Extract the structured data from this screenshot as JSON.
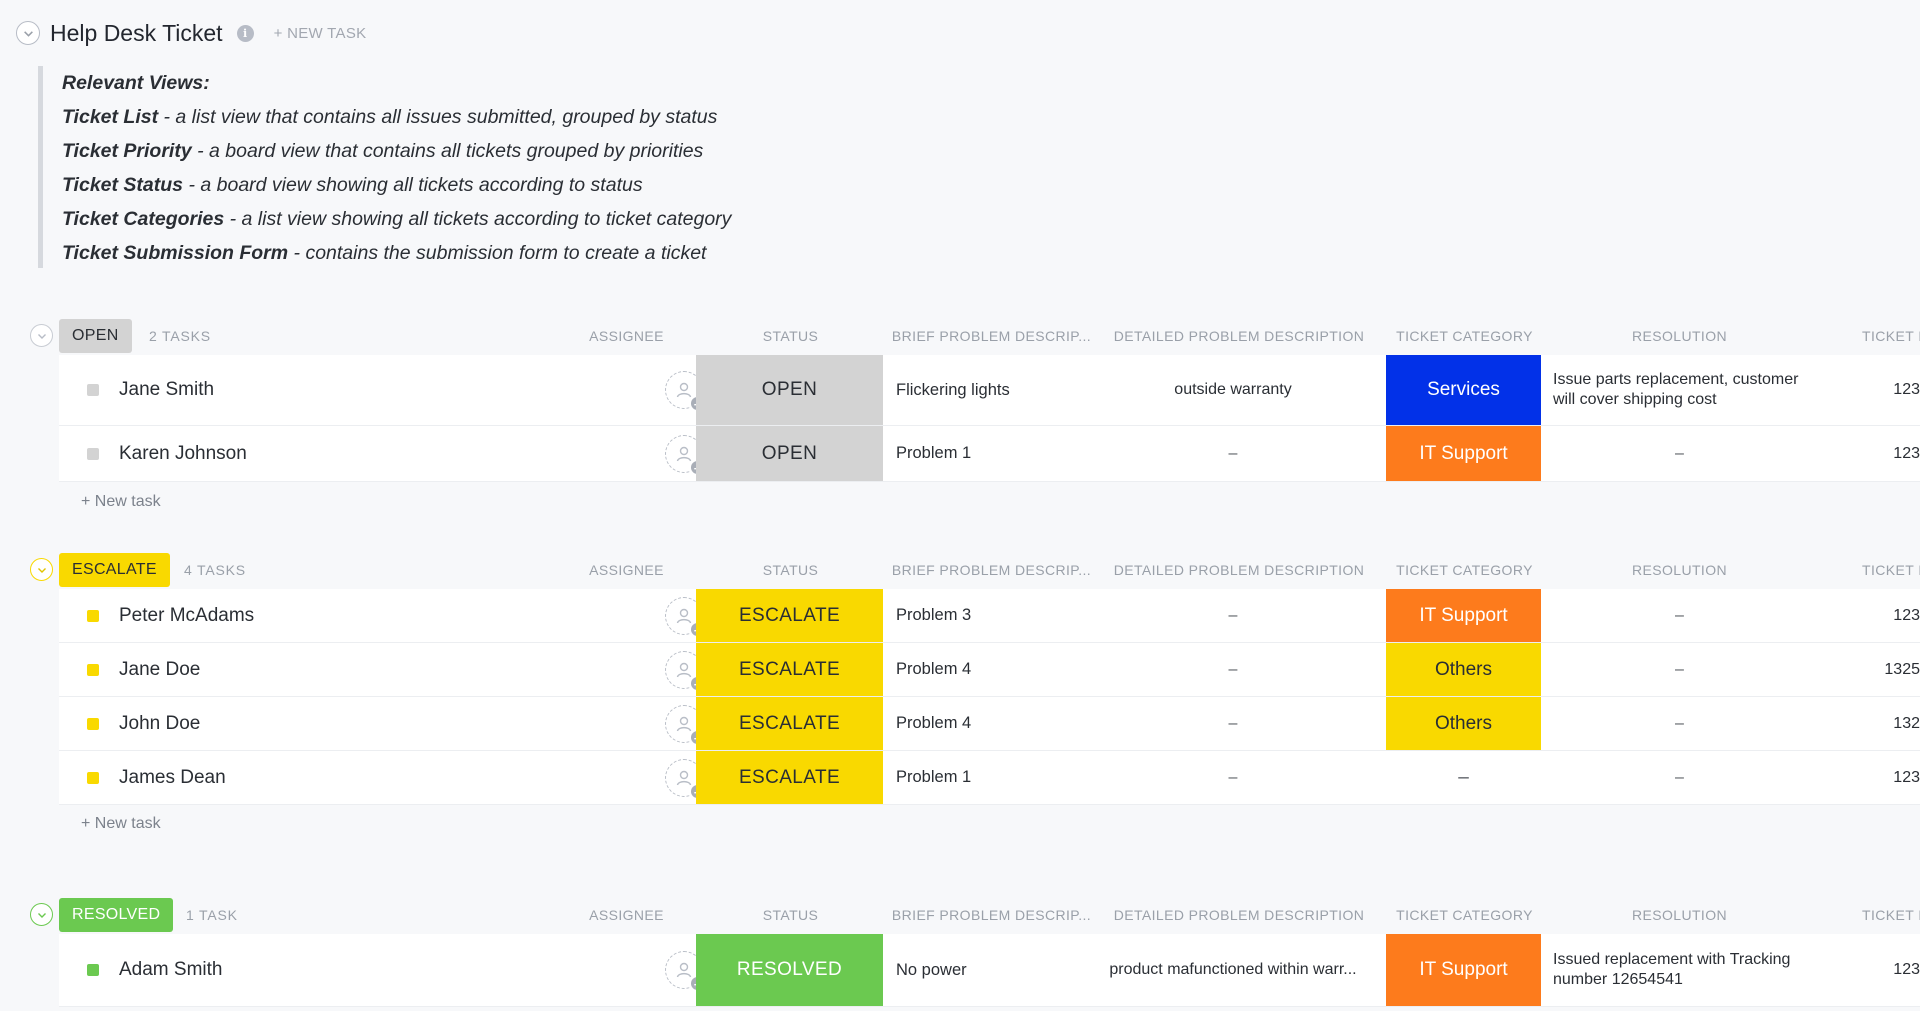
{
  "header": {
    "title": "Help Desk Ticket",
    "info_icon": "info-icon",
    "new_task": "+ NEW TASK"
  },
  "views": [
    {
      "bold": "Relevant Views:",
      "text": ""
    },
    {
      "bold": "Ticket List",
      "text": " - a list view that contains all issues submitted, grouped by status"
    },
    {
      "bold": "Ticket Priority",
      "text": " - a board view that contains all tickets grouped by priorities"
    },
    {
      "bold": "Ticket Status",
      "text": " - a board view showing all tickets according to status"
    },
    {
      "bold": "Ticket Categories",
      "text": " - a list view showing all tickets according to ticket category"
    },
    {
      "bold": "Ticket Submission Form",
      "text": " - contains the submission form to create a ticket"
    }
  ],
  "columns": {
    "assignee": "ASSIGNEE",
    "status": "STATUS",
    "brief": "BRIEF PROBLEM DESCRIP...",
    "detailed": "DETAILED PROBLEM DESCRIPTION",
    "category": "TICKET CATEGORY",
    "resolution": "RESOLUTION",
    "ticket": "TICKET I"
  },
  "colors": {
    "open": "#d3d3d3",
    "escalate": "#f9d900",
    "resolved": "#6bc950",
    "services": "#0231e8",
    "it_support": "#fd7b1c",
    "others": "#f9d900"
  },
  "groups": {
    "open": {
      "label": "OPEN",
      "count": "2 TASKS",
      "add": "+ New task",
      "rows": [
        {
          "name": "Jane Smith",
          "status": "OPEN",
          "brief": "Flickering lights",
          "detailed": "outside warranty",
          "category": "Services",
          "resolution": "Issue parts replacement, customer will cover shipping cost",
          "ticket": "123"
        },
        {
          "name": "Karen Johnson",
          "status": "OPEN",
          "brief": "Problem 1",
          "detailed": "–",
          "category": "IT Support",
          "resolution": "–",
          "ticket": "123"
        }
      ]
    },
    "escalate": {
      "label": "ESCALATE",
      "count": "4 TASKS",
      "add": "+ New task",
      "rows": [
        {
          "name": "Peter McAdams",
          "status": "ESCALATE",
          "brief": "Problem 3",
          "detailed": "–",
          "category": "IT Support",
          "resolution": "–",
          "ticket": "123"
        },
        {
          "name": "Jane Doe",
          "status": "ESCALATE",
          "brief": "Problem 4",
          "detailed": "–",
          "category": "Others",
          "resolution": "–",
          "ticket": "1325"
        },
        {
          "name": "John Doe",
          "status": "ESCALATE",
          "brief": "Problem 4",
          "detailed": "–",
          "category": "Others",
          "resolution": "–",
          "ticket": "132"
        },
        {
          "name": "James Dean",
          "status": "ESCALATE",
          "brief": "Problem 1",
          "detailed": "–",
          "category": "–",
          "resolution": "–",
          "ticket": "123"
        }
      ]
    },
    "resolved": {
      "label": "RESOLVED",
      "count": "1 TASK",
      "rows": [
        {
          "name": "Adam Smith",
          "status": "RESOLVED",
          "brief": "No power",
          "detailed": "product mafunctioned within warr...",
          "category": "IT Support",
          "resolution": "Issued replacement with Tracking number 12654541",
          "ticket": "123"
        }
      ]
    }
  }
}
